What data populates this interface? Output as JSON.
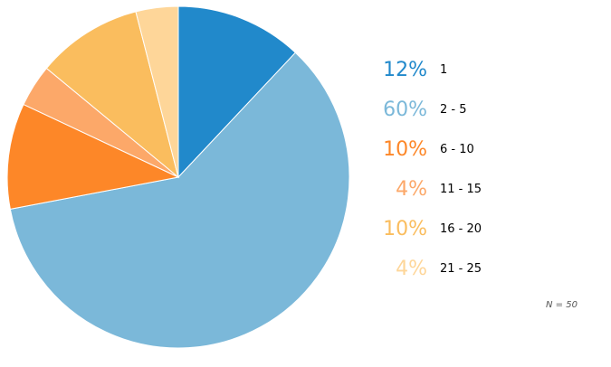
{
  "chart_data": {
    "type": "pie",
    "title": "",
    "slices": [
      {
        "label": "1",
        "percent": 12,
        "percent_label": "12%",
        "color": "#2189cb"
      },
      {
        "label": "2 - 5",
        "percent": 60,
        "percent_label": "60%",
        "color": "#7bb8d9"
      },
      {
        "label": "6 - 10",
        "percent": 10,
        "percent_label": "10%",
        "color": "#fd8728"
      },
      {
        "label": "11 - 15",
        "percent": 4,
        "percent_label": "4%",
        "color": "#fca869"
      },
      {
        "label": "16 - 20",
        "percent": 10,
        "percent_label": "10%",
        "color": "#fabd5e"
      },
      {
        "label": "21 - 25",
        "percent": 4,
        "percent_label": "4%",
        "color": "#fed699"
      }
    ],
    "legend_position": "right",
    "note": "N = 50"
  }
}
